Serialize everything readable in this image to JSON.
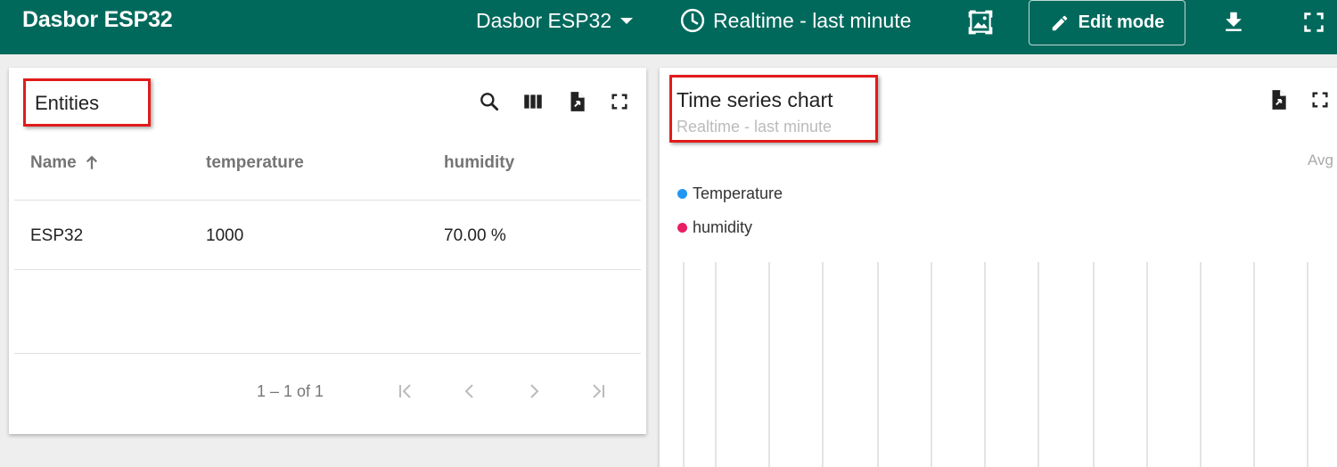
{
  "header": {
    "app_title": "Dasbor ESP32",
    "dashboard_select": "Dasbor ESP32",
    "timewindow": "Realtime - last minute",
    "edit_mode_label": "Edit mode",
    "icons": [
      "dashboard-image-icon",
      "pencil-icon",
      "download-icon",
      "fullscreen-icon",
      "clock-icon"
    ]
  },
  "entities_widget": {
    "title": "Entities",
    "columns": [
      "Name",
      "temperature",
      "humidity"
    ],
    "sort": {
      "column": "Name",
      "direction": "ascending"
    },
    "rows": [
      {
        "name": "ESP32",
        "temperature": "1000",
        "humidity": "70.00 %"
      }
    ],
    "pagination": "1 – 1 of 1",
    "icons": [
      "search-icon",
      "columns-icon",
      "export-icon",
      "fullscreen-icon"
    ]
  },
  "chart_widget": {
    "title": "Time series chart",
    "subtitle": "Realtime - last minute",
    "avg_label": "Avg",
    "legend": [
      {
        "name": "Temperature",
        "color": "#2196f3"
      },
      {
        "name": "humidity",
        "color": "#e91e63"
      }
    ],
    "icons": [
      "export-icon",
      "fullscreen-icon"
    ]
  },
  "chart_data": {
    "type": "line",
    "series": [
      {
        "name": "Temperature",
        "color": "#2196f3",
        "values": []
      },
      {
        "name": "humidity",
        "color": "#e91e63",
        "values": []
      }
    ],
    "grid": true
  },
  "colors": {
    "topbar": "#00695c",
    "highlight": "#e21b1b"
  }
}
